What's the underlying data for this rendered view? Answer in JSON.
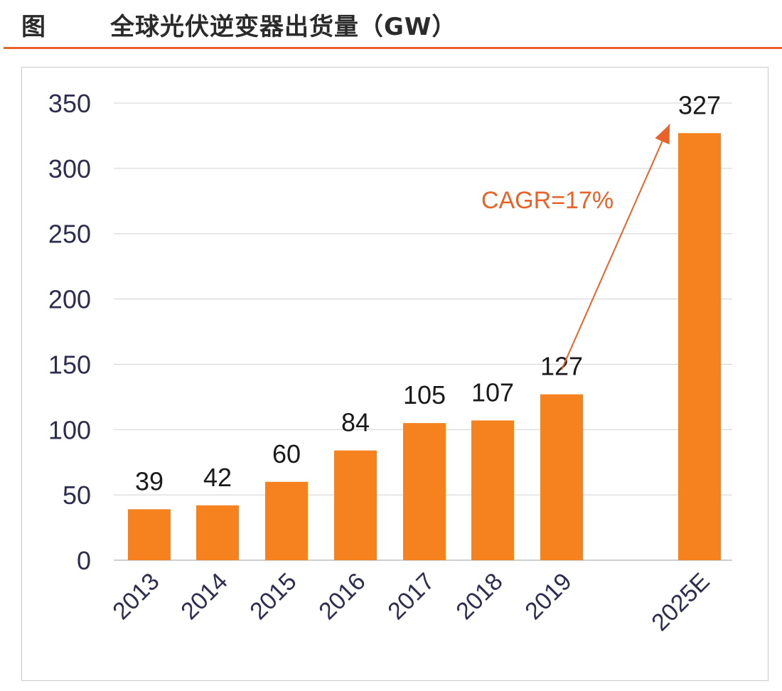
{
  "header": {
    "label": "图",
    "title": "全球光伏逆变器出货量（GW）"
  },
  "colors": {
    "bar": "#f5821f",
    "accent": "#e8622a",
    "axis_text": "#2d2d4f",
    "grid": "#d0d0d0"
  },
  "chart_data": {
    "type": "bar",
    "categories": [
      "2013",
      "2014",
      "2015",
      "2016",
      "2017",
      "2018",
      "2019",
      "2025E"
    ],
    "values": [
      39,
      42,
      60,
      84,
      105,
      107,
      127,
      327
    ],
    "data_labels": [
      "39",
      "42",
      "60",
      "84",
      "105",
      "107",
      "127",
      "327"
    ],
    "y_ticks": [
      "0",
      "50",
      "100",
      "150",
      "200",
      "250",
      "300",
      "350"
    ],
    "ylim": [
      0,
      350
    ],
    "grid": true,
    "legend": "none",
    "annotation": {
      "text": "CAGR=17%",
      "from_category": "2019",
      "to_category": "2025E"
    }
  }
}
